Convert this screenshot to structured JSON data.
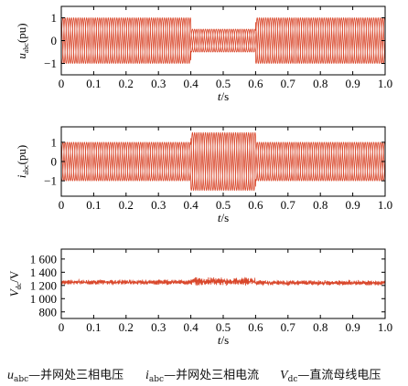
{
  "chart_data": [
    {
      "type": "line",
      "ylabel": {
        "main": "u",
        "sub": "abc",
        "unit": "(pu)"
      },
      "xlabel": {
        "main": "t",
        "unit": "/s"
      },
      "xlim": [
        0,
        1.0
      ],
      "ylim": [
        -1.5,
        1.5
      ],
      "xticks": [
        "0",
        "0.1",
        "0.2",
        "0.3",
        "0.4",
        "0.5",
        "0.6",
        "0.7",
        "0.8",
        "0.9",
        "1.0"
      ],
      "yticks": [
        "1",
        "0",
        "−1"
      ],
      "yticks_values": [
        1,
        0,
        -1
      ],
      "color": "#d9472b",
      "segments": [
        {
          "t_start": 0.0,
          "t_end": 0.4,
          "amplitude": 1.0
        },
        {
          "t_start": 0.4,
          "t_end": 0.6,
          "amplitude": 0.5
        },
        {
          "t_start": 0.6,
          "t_end": 1.0,
          "amplitude": 1.0
        }
      ],
      "frequency_hz": 50,
      "phases": 3
    },
    {
      "type": "line",
      "ylabel": {
        "main": "i",
        "sub": "abc",
        "unit": "(pu)"
      },
      "xlabel": {
        "main": "t",
        "unit": "/s"
      },
      "xlim": [
        0,
        1.0
      ],
      "ylim": [
        -1.8,
        1.8
      ],
      "xticks": [
        "0",
        "0.1",
        "0.2",
        "0.3",
        "0.4",
        "0.5",
        "0.6",
        "0.7",
        "0.8",
        "0.9",
        "1.0"
      ],
      "yticks": [
        "1",
        "0",
        "−1"
      ],
      "yticks_values": [
        1,
        0,
        -1
      ],
      "color": "#d9472b",
      "segments": [
        {
          "t_start": 0.0,
          "t_end": 0.4,
          "amplitude": 1.0
        },
        {
          "t_start": 0.4,
          "t_end": 0.6,
          "amplitude": 1.5
        },
        {
          "t_start": 0.6,
          "t_end": 1.0,
          "amplitude": 1.0
        }
      ],
      "frequency_hz": 50,
      "phases": 3
    },
    {
      "type": "line",
      "ylabel": {
        "main": "V",
        "sub": "dc",
        "unit": "/V"
      },
      "xlabel": {
        "main": "t",
        "unit": "/s"
      },
      "xlim": [
        0,
        1.0
      ],
      "ylim": [
        700,
        1750
      ],
      "xticks": [
        "0",
        "0.1",
        "0.2",
        "0.3",
        "0.4",
        "0.5",
        "0.6",
        "0.7",
        "0.8",
        "0.9",
        "1.0"
      ],
      "yticks": [
        "1 600",
        "1 400",
        "1 200",
        "1 000",
        "800"
      ],
      "yticks_values": [
        1600,
        1400,
        1200,
        1000,
        800
      ],
      "color": "#d9472b",
      "segments": [
        {
          "t_start": 0.0,
          "t_end": 0.4,
          "mean": 1250,
          "ripple": 40
        },
        {
          "t_start": 0.4,
          "t_end": 0.6,
          "mean": 1260,
          "ripple": 65
        },
        {
          "t_start": 0.6,
          "t_end": 1.0,
          "mean": 1240,
          "ripple": 40
        }
      ]
    }
  ],
  "caption": {
    "u": {
      "main": "u",
      "sub": "abc",
      "desc": "—并网处三相电压"
    },
    "i": {
      "main": "i",
      "sub": "abc",
      "desc": "—并网处三相电流"
    },
    "v": {
      "main": "V",
      "sub": "dc",
      "desc": "—直流母线电压"
    }
  }
}
